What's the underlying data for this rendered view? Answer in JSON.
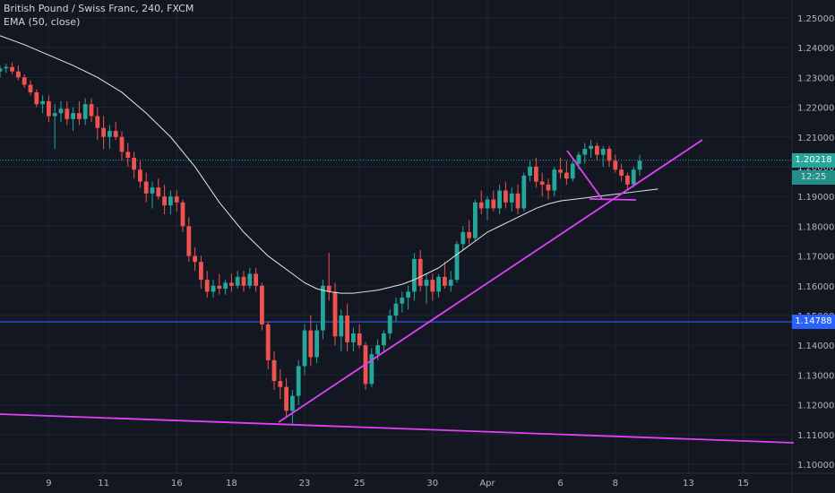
{
  "chart": {
    "title": "British Pound / Swiss Franc, 240, FXCM",
    "indicator": "EMA (50, close)"
  },
  "colors": {
    "background": "#131722",
    "grid": "#1f2430",
    "bull": "#26a69a",
    "bear": "#ef5350",
    "ema": "#e6e6e6",
    "trendline": "#e040fb",
    "support_line": "#2962ff",
    "axis_text": "#b2b5be"
  },
  "price_labels": {
    "current_price": "1.20218",
    "countdown": "12:25",
    "support_price": "1.14788"
  },
  "chart_data": {
    "type": "candlestick",
    "x_axis": {
      "ticks": [
        "9",
        "11",
        "16",
        "18",
        "23",
        "25",
        "30",
        "Apr",
        "6",
        "8",
        "13",
        "15"
      ],
      "tick_index": [
        8,
        17,
        29,
        38,
        50,
        59,
        71,
        80,
        92,
        101,
        113,
        122
      ]
    },
    "y_axis": {
      "ylim": [
        1.097,
        1.256
      ],
      "ticks": [
        "1.25000",
        "1.24000",
        "1.23000",
        "1.22000",
        "1.21000",
        "1.20000",
        "1.19000",
        "1.18000",
        "1.17000",
        "1.16000",
        "1.15000",
        "1.14000",
        "1.13000",
        "1.12000",
        "1.11000",
        "1.10000"
      ]
    },
    "candles": [
      [
        1.232,
        1.234,
        1.23,
        1.233
      ],
      [
        1.233,
        1.2345,
        1.2315,
        1.2335
      ],
      [
        1.2335,
        1.235,
        1.231,
        1.232
      ],
      [
        1.232,
        1.234,
        1.229,
        1.23
      ],
      [
        1.23,
        1.231,
        1.2265,
        1.2275
      ],
      [
        1.2275,
        1.229,
        1.224,
        1.225
      ],
      [
        1.225,
        1.226,
        1.22,
        1.221
      ],
      [
        1.221,
        1.224,
        1.218,
        1.222
      ],
      [
        1.222,
        1.224,
        1.215,
        1.217
      ],
      [
        1.217,
        1.221,
        1.206,
        1.218
      ],
      [
        1.218,
        1.222,
        1.215,
        1.2195
      ],
      [
        1.2195,
        1.222,
        1.214,
        1.216
      ],
      [
        1.216,
        1.22,
        1.212,
        1.218
      ],
      [
        1.218,
        1.222,
        1.214,
        1.216
      ],
      [
        1.216,
        1.223,
        1.214,
        1.221
      ],
      [
        1.221,
        1.223,
        1.215,
        1.217
      ],
      [
        1.217,
        1.22,
        1.209,
        1.213
      ],
      [
        1.213,
        1.217,
        1.206,
        1.21
      ],
      [
        1.21,
        1.214,
        1.206,
        1.212
      ],
      [
        1.212,
        1.215,
        1.209,
        1.21
      ],
      [
        1.21,
        1.212,
        1.202,
        1.205
      ],
      [
        1.205,
        1.208,
        1.2,
        1.203
      ],
      [
        1.203,
        1.205,
        1.196,
        1.199
      ],
      [
        1.199,
        1.202,
        1.193,
        1.195
      ],
      [
        1.195,
        1.198,
        1.188,
        1.191
      ],
      [
        1.191,
        1.195,
        1.186,
        1.193
      ],
      [
        1.193,
        1.196,
        1.189,
        1.19
      ],
      [
        1.19,
        1.194,
        1.184,
        1.187
      ],
      [
        1.187,
        1.192,
        1.184,
        1.19
      ],
      [
        1.19,
        1.192,
        1.185,
        1.188
      ],
      [
        1.188,
        1.189,
        1.178,
        1.18
      ],
      [
        1.18,
        1.183,
        1.168,
        1.17
      ],
      [
        1.17,
        1.173,
        1.165,
        1.168
      ],
      [
        1.168,
        1.17,
        1.159,
        1.162
      ],
      [
        1.162,
        1.165,
        1.156,
        1.158
      ],
      [
        1.158,
        1.162,
        1.156,
        1.16
      ],
      [
        1.16,
        1.164,
        1.157,
        1.159
      ],
      [
        1.159,
        1.162,
        1.157,
        1.161
      ],
      [
        1.161,
        1.164,
        1.158,
        1.16
      ],
      [
        1.16,
        1.165,
        1.159,
        1.163
      ],
      [
        1.163,
        1.165,
        1.158,
        1.16
      ],
      [
        1.16,
        1.166,
        1.159,
        1.164
      ],
      [
        1.164,
        1.166,
        1.158,
        1.16
      ],
      [
        1.16,
        1.161,
        1.145,
        1.147
      ],
      [
        1.147,
        1.148,
        1.132,
        1.135
      ],
      [
        1.135,
        1.138,
        1.125,
        1.128
      ],
      [
        1.128,
        1.132,
        1.122,
        1.126
      ],
      [
        1.126,
        1.129,
        1.116,
        1.118
      ],
      [
        1.118,
        1.125,
        1.113,
        1.123
      ],
      [
        1.123,
        1.135,
        1.12,
        1.133
      ],
      [
        1.133,
        1.147,
        1.13,
        1.145
      ],
      [
        1.145,
        1.15,
        1.133,
        1.136
      ],
      [
        1.136,
        1.147,
        1.134,
        1.145
      ],
      [
        1.145,
        1.162,
        1.142,
        1.16
      ],
      [
        1.16,
        1.171,
        1.155,
        1.158
      ],
      [
        1.158,
        1.161,
        1.14,
        1.143
      ],
      [
        1.143,
        1.152,
        1.138,
        1.15
      ],
      [
        1.15,
        1.154,
        1.138,
        1.141
      ],
      [
        1.141,
        1.146,
        1.138,
        1.144
      ],
      [
        1.144,
        1.147,
        1.139,
        1.14
      ],
      [
        1.14,
        1.141,
        1.125,
        1.127
      ],
      [
        1.127,
        1.139,
        1.126,
        1.137
      ],
      [
        1.137,
        1.142,
        1.135,
        1.14
      ],
      [
        1.14,
        1.145,
        1.138,
        1.144
      ],
      [
        1.144,
        1.152,
        1.142,
        1.15
      ],
      [
        1.15,
        1.156,
        1.148,
        1.154
      ],
      [
        1.154,
        1.158,
        1.151,
        1.156
      ],
      [
        1.156,
        1.16,
        1.152,
        1.158
      ],
      [
        1.158,
        1.171,
        1.155,
        1.169
      ],
      [
        1.169,
        1.172,
        1.158,
        1.16
      ],
      [
        1.16,
        1.164,
        1.154,
        1.162
      ],
      [
        1.162,
        1.164,
        1.155,
        1.158
      ],
      [
        1.158,
        1.164,
        1.156,
        1.163
      ],
      [
        1.163,
        1.168,
        1.159,
        1.16
      ],
      [
        1.16,
        1.165,
        1.158,
        1.162
      ],
      [
        1.162,
        1.175,
        1.161,
        1.174
      ],
      [
        1.174,
        1.18,
        1.172,
        1.178
      ],
      [
        1.178,
        1.182,
        1.174,
        1.176
      ],
      [
        1.176,
        1.189,
        1.175,
        1.188
      ],
      [
        1.188,
        1.192,
        1.184,
        1.186
      ],
      [
        1.186,
        1.19,
        1.182,
        1.189
      ],
      [
        1.189,
        1.192,
        1.185,
        1.186
      ],
      [
        1.186,
        1.194,
        1.184,
        1.192
      ],
      [
        1.192,
        1.195,
        1.186,
        1.188
      ],
      [
        1.188,
        1.193,
        1.185,
        1.191
      ],
      [
        1.191,
        1.194,
        1.184,
        1.186
      ],
      [
        1.186,
        1.198,
        1.185,
        1.197
      ],
      [
        1.197,
        1.202,
        1.195,
        1.2
      ],
      [
        1.2,
        1.203,
        1.193,
        1.195
      ],
      [
        1.195,
        1.198,
        1.19,
        1.194
      ],
      [
        1.194,
        1.196,
        1.189,
        1.192
      ],
      [
        1.192,
        1.2,
        1.19,
        1.199
      ],
      [
        1.199,
        1.203,
        1.196,
        1.198
      ],
      [
        1.198,
        1.202,
        1.194,
        1.196
      ],
      [
        1.196,
        1.202,
        1.195,
        1.201
      ],
      [
        1.201,
        1.205,
        1.199,
        1.204
      ],
      [
        1.204,
        1.208,
        1.201,
        1.206
      ],
      [
        1.206,
        1.209,
        1.203,
        1.207
      ],
      [
        1.207,
        1.208,
        1.202,
        1.204
      ],
      [
        1.204,
        1.207,
        1.2,
        1.206
      ],
      [
        1.206,
        1.207,
        1.2,
        1.202
      ],
      [
        1.202,
        1.204,
        1.198,
        1.199
      ],
      [
        1.199,
        1.201,
        1.195,
        1.197
      ],
      [
        1.197,
        1.198,
        1.192,
        1.194
      ],
      [
        1.194,
        1.2,
        1.193,
        1.199
      ],
      [
        1.199,
        1.204,
        1.197,
        1.202
      ]
    ],
    "series": [
      {
        "name": "EMA (50, close)",
        "type": "line",
        "x": [
          0,
          4,
          8,
          12,
          16,
          20,
          24,
          28,
          32,
          36,
          40,
          44,
          48,
          50,
          52,
          54,
          56,
          58,
          60,
          62,
          64,
          66,
          68,
          70,
          72,
          74,
          76,
          78,
          80,
          82,
          84,
          86,
          88,
          90,
          92,
          94,
          96,
          98,
          100,
          102,
          104,
          106,
          108
        ],
        "y": [
          1.244,
          1.241,
          1.2375,
          1.234,
          1.23,
          1.225,
          1.218,
          1.21,
          1.2,
          1.188,
          1.178,
          1.17,
          1.164,
          1.161,
          1.159,
          1.158,
          1.1575,
          1.1575,
          1.158,
          1.1585,
          1.1595,
          1.1605,
          1.162,
          1.164,
          1.166,
          1.169,
          1.172,
          1.175,
          1.178,
          1.18,
          1.182,
          1.184,
          1.186,
          1.1875,
          1.1885,
          1.189,
          1.1895,
          1.19,
          1.1905,
          1.191,
          1.1915,
          1.192,
          1.1925
        ]
      }
    ],
    "grid": true
  }
}
